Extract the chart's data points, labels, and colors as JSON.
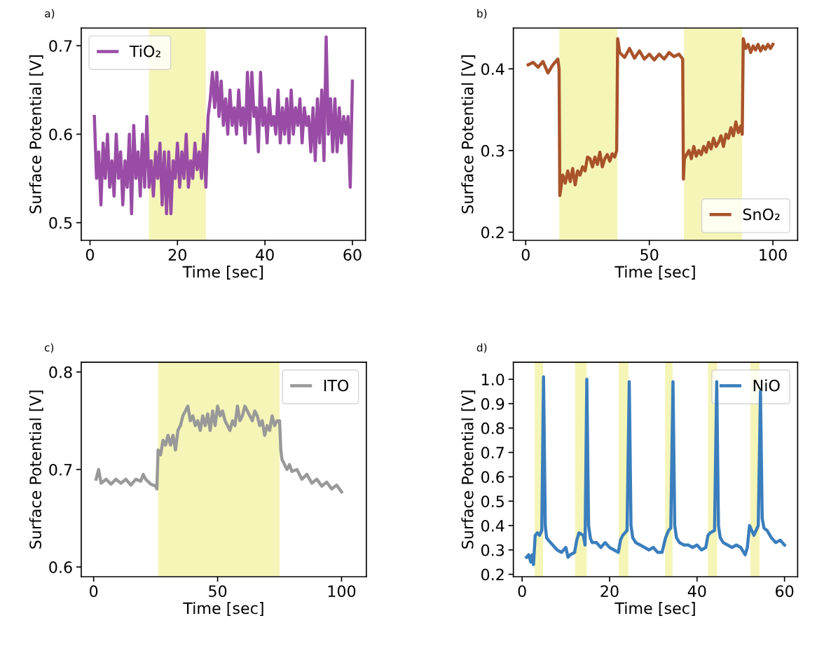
{
  "chart_data": [
    {
      "type": "line",
      "title": "a)",
      "xlabel": "Time [sec]",
      "ylabel": "Surface Potential [V]",
      "legend": "top left",
      "xlim": [
        -2,
        63
      ],
      "ylim": [
        0.48,
        0.72
      ],
      "xticks": [
        0,
        20,
        40,
        60
      ],
      "yticks": [
        0.5,
        0.6,
        0.7
      ],
      "bands": [
        {
          "axis": "x",
          "from": 13.5,
          "to": 26.5,
          "color": "#f5f5b8"
        }
      ],
      "x": [
        1,
        1.5,
        2,
        2.5,
        3,
        3.5,
        4,
        4.5,
        5,
        5.5,
        6,
        6.5,
        7,
        7.5,
        8,
        8.5,
        9,
        9.5,
        10,
        10.5,
        11,
        11.5,
        12,
        12.5,
        13,
        13.5,
        14,
        14.5,
        15,
        15.5,
        16,
        16.5,
        17,
        17.5,
        18,
        18.5,
        19,
        19.5,
        20,
        20.5,
        21,
        21.5,
        22,
        22.5,
        23,
        23.5,
        24,
        24.5,
        25,
        25.5,
        26,
        26.5,
        27,
        27.5,
        28,
        28.5,
        29,
        29.5,
        30,
        30.5,
        31,
        31.5,
        32,
        32.5,
        33,
        33.5,
        34,
        34.5,
        35,
        35.5,
        36,
        36.5,
        37,
        37.5,
        38,
        38.5,
        39,
        39.5,
        40,
        40.5,
        41,
        41.5,
        42,
        42.5,
        43,
        43.5,
        44,
        44.5,
        45,
        45.5,
        46,
        46.5,
        47,
        47.5,
        48,
        48.5,
        49,
        49.5,
        50,
        50.5,
        51,
        51.5,
        52,
        52.5,
        53,
        53.5,
        54,
        54.5,
        55,
        55.5,
        56,
        56.5,
        57,
        57.5,
        58,
        58.5,
        59,
        59.5,
        60
      ],
      "series": [
        {
          "name": "TiO₂",
          "color": "#994ca5",
          "values": [
            0.62,
            0.55,
            0.58,
            0.52,
            0.59,
            0.55,
            0.6,
            0.54,
            0.57,
            0.53,
            0.6,
            0.55,
            0.58,
            0.52,
            0.57,
            0.54,
            0.6,
            0.51,
            0.61,
            0.55,
            0.58,
            0.53,
            0.6,
            0.54,
            0.62,
            0.54,
            0.57,
            0.53,
            0.58,
            0.55,
            0.59,
            0.52,
            0.58,
            0.51,
            0.58,
            0.51,
            0.57,
            0.55,
            0.59,
            0.54,
            0.58,
            0.55,
            0.6,
            0.54,
            0.57,
            0.55,
            0.59,
            0.56,
            0.58,
            0.55,
            0.6,
            0.54,
            0.62,
            0.64,
            0.67,
            0.63,
            0.67,
            0.62,
            0.66,
            0.61,
            0.64,
            0.6,
            0.65,
            0.61,
            0.63,
            0.6,
            0.65,
            0.61,
            0.63,
            0.59,
            0.67,
            0.6,
            0.67,
            0.62,
            0.63,
            0.58,
            0.67,
            0.61,
            0.63,
            0.59,
            0.64,
            0.61,
            0.62,
            0.6,
            0.65,
            0.59,
            0.63,
            0.6,
            0.64,
            0.59,
            0.65,
            0.6,
            0.63,
            0.61,
            0.64,
            0.59,
            0.63,
            0.61,
            0.62,
            0.58,
            0.63,
            0.57,
            0.64,
            0.59,
            0.65,
            0.57,
            0.71,
            0.6,
            0.64,
            0.58,
            0.64,
            0.58,
            0.63,
            0.59,
            0.62,
            0.6,
            0.62,
            0.54,
            0.66
          ]
        }
      ]
    },
    {
      "type": "line",
      "title": "b)",
      "xlabel": "Time [sec]",
      "ylabel": "Surface Potential [V]",
      "legend": "bottom right",
      "xlim": [
        -5,
        110
      ],
      "ylim": [
        0.19,
        0.45
      ],
      "xticks": [
        0,
        50,
        100
      ],
      "yticks": [
        0.2,
        0.3,
        0.4
      ],
      "bands": [
        {
          "axis": "x",
          "from": 13.6,
          "to": 37.1,
          "color": "#f5f5b8"
        },
        {
          "axis": "x",
          "from": 64,
          "to": 87.5,
          "color": "#f5f5b8"
        }
      ],
      "x": [
        1,
        3,
        5,
        7,
        9,
        11,
        13,
        13.5,
        13.8,
        15,
        16,
        17,
        18,
        19,
        20,
        21,
        22,
        23,
        24,
        25,
        26,
        27,
        28,
        29,
        30,
        31,
        32,
        33,
        34,
        35,
        36,
        36.8,
        37.2,
        38,
        40,
        42,
        44,
        46,
        48,
        50,
        52,
        54,
        56,
        58,
        60,
        62,
        63.5,
        63.8,
        64.2,
        66,
        67,
        68,
        69,
        70,
        71,
        72,
        73,
        74,
        75,
        76,
        77,
        78,
        79,
        80,
        81,
        82,
        83,
        84,
        85,
        86,
        87,
        87.6,
        88,
        89,
        90,
        91,
        92,
        93,
        94,
        95,
        96,
        97,
        98,
        99,
        100
      ],
      "series": [
        {
          "name": "SnO₂",
          "color": "#a8532a",
          "values": [
            0.405,
            0.408,
            0.402,
            0.409,
            0.395,
            0.405,
            0.412,
            0.4,
            0.245,
            0.27,
            0.26,
            0.275,
            0.262,
            0.278,
            0.258,
            0.275,
            0.27,
            0.28,
            0.275,
            0.292,
            0.29,
            0.28,
            0.292,
            0.283,
            0.298,
            0.28,
            0.29,
            0.295,
            0.287,
            0.296,
            0.292,
            0.3,
            0.437,
            0.42,
            0.414,
            0.425,
            0.413,
            0.422,
            0.412,
            0.418,
            0.411,
            0.418,
            0.412,
            0.42,
            0.415,
            0.418,
            0.412,
            0.265,
            0.29,
            0.3,
            0.29,
            0.305,
            0.293,
            0.3,
            0.295,
            0.305,
            0.298,
            0.31,
            0.302,
            0.315,
            0.305,
            0.31,
            0.318,
            0.305,
            0.32,
            0.315,
            0.328,
            0.318,
            0.335,
            0.322,
            0.33,
            0.32,
            0.437,
            0.425,
            0.43,
            0.42,
            0.428,
            0.423,
            0.43,
            0.422,
            0.428,
            0.424,
            0.43,
            0.425,
            0.43
          ]
        }
      ]
    },
    {
      "type": "line",
      "title": "c)",
      "xlabel": "Time [sec]",
      "ylabel": "Surface Potential [V]",
      "legend": "top right",
      "xlim": [
        -5,
        110
      ],
      "ylim": [
        0.59,
        0.81
      ],
      "xticks": [
        0,
        50,
        100
      ],
      "yticks": [
        0.6,
        0.7,
        0.8
      ],
      "bands": [
        {
          "axis": "x",
          "from": 26,
          "to": 75,
          "color": "#f5f5b8"
        }
      ],
      "x": [
        1,
        2,
        3,
        5,
        7,
        9,
        11,
        13,
        15,
        17,
        19,
        20,
        21,
        23,
        25,
        25.5,
        26,
        27,
        28,
        29,
        30,
        31,
        32,
        33,
        34,
        35,
        36,
        37,
        38,
        39,
        40,
        41,
        42,
        43,
        44,
        45,
        46,
        47,
        48,
        49,
        50,
        51,
        52,
        53,
        54,
        55,
        56,
        57,
        58,
        59,
        60,
        61,
        62,
        63,
        64,
        65,
        66,
        67,
        68,
        69,
        70,
        71,
        72,
        73,
        74,
        75,
        75.5,
        76,
        77,
        78,
        79,
        80,
        82,
        84,
        86,
        88,
        90,
        92,
        94,
        96,
        98,
        100
      ],
      "series": [
        {
          "name": "ITO",
          "color": "#999999",
          "values": [
            0.69,
            0.7,
            0.686,
            0.69,
            0.685,
            0.69,
            0.686,
            0.69,
            0.684,
            0.69,
            0.688,
            0.695,
            0.69,
            0.685,
            0.683,
            0.68,
            0.72,
            0.715,
            0.73,
            0.725,
            0.735,
            0.725,
            0.735,
            0.72,
            0.74,
            0.745,
            0.755,
            0.76,
            0.765,
            0.75,
            0.755,
            0.745,
            0.75,
            0.74,
            0.755,
            0.745,
            0.757,
            0.74,
            0.76,
            0.745,
            0.765,
            0.755,
            0.76,
            0.75,
            0.745,
            0.74,
            0.75,
            0.745,
            0.765,
            0.75,
            0.755,
            0.765,
            0.76,
            0.755,
            0.75,
            0.76,
            0.755,
            0.745,
            0.75,
            0.735,
            0.745,
            0.74,
            0.755,
            0.745,
            0.75,
            0.75,
            0.72,
            0.71,
            0.705,
            0.7,
            0.705,
            0.698,
            0.7,
            0.69,
            0.695,
            0.686,
            0.69,
            0.683,
            0.687,
            0.68,
            0.684,
            0.677
          ]
        }
      ]
    },
    {
      "type": "line",
      "title": "d)",
      "xlabel": "Time [sec]",
      "ylabel": "Surface Potential [V]",
      "legend": "top right",
      "xlim": [
        -2,
        63
      ],
      "ylim": [
        0.19,
        1.07
      ],
      "xticks": [
        0,
        20,
        40,
        60
      ],
      "yticks": [
        0.2,
        0.3,
        0.4,
        0.5,
        0.6,
        0.7,
        0.8,
        0.9,
        {
          "value": 1,
          "label": "1.0"
        }
      ],
      "bands": [
        {
          "axis": "x",
          "from": 2.9,
          "to": 4.8,
          "color": "#f5f5b8"
        },
        {
          "axis": "x",
          "from": 12.1,
          "to": 14.8,
          "color": "#f5f5b8"
        },
        {
          "axis": "x",
          "from": 22.1,
          "to": 24.3,
          "color": "#f5f5b8"
        },
        {
          "axis": "x",
          "from": 32.7,
          "to": 34.4,
          "color": "#f5f5b8"
        },
        {
          "axis": "x",
          "from": 42.5,
          "to": 44.6,
          "color": "#f5f5b8"
        },
        {
          "axis": "x",
          "from": 52.2,
          "to": 54.3,
          "color": "#f5f5b8"
        }
      ],
      "x": [
        1,
        1.5,
        2,
        2.3,
        2.6,
        3,
        3.5,
        4,
        4.5,
        4.9,
        5.3,
        5.6,
        6,
        7,
        8,
        9,
        10,
        10.5,
        11,
        12,
        12.5,
        13,
        14,
        14.4,
        14.8,
        15.2,
        15.6,
        16,
        17,
        18,
        19,
        20,
        21,
        22,
        22.5,
        23,
        24,
        24.5,
        24.9,
        25.3,
        26,
        27,
        28,
        29,
        30,
        31,
        32,
        32.8,
        33.5,
        34,
        34.5,
        34.9,
        35.3,
        36,
        37,
        38,
        39,
        40,
        41,
        42,
        42.5,
        43,
        44,
        44.5,
        44.9,
        45.3,
        46,
        47,
        48,
        49,
        50,
        51,
        51.5,
        52,
        53,
        54,
        54.5,
        54.9,
        55.3,
        56,
        57,
        58,
        59,
        60
      ],
      "series": [
        {
          "name": "NiO",
          "color": "#3a7ebd",
          "values": [
            0.27,
            0.28,
            0.25,
            0.28,
            0.24,
            0.36,
            0.37,
            0.36,
            0.38,
            1.01,
            0.4,
            0.35,
            0.34,
            0.32,
            0.3,
            0.29,
            0.31,
            0.27,
            0.28,
            0.29,
            0.34,
            0.37,
            0.36,
            0.32,
            1.0,
            0.4,
            0.35,
            0.33,
            0.33,
            0.31,
            0.33,
            0.31,
            0.3,
            0.29,
            0.34,
            0.36,
            0.38,
            0.99,
            0.4,
            0.35,
            0.33,
            0.32,
            0.31,
            0.3,
            0.31,
            0.29,
            0.29,
            0.35,
            0.38,
            0.39,
            0.99,
            0.4,
            0.35,
            0.33,
            0.32,
            0.32,
            0.31,
            0.32,
            0.3,
            0.31,
            0.36,
            0.37,
            0.38,
            0.99,
            0.4,
            0.35,
            0.33,
            0.32,
            0.31,
            0.32,
            0.31,
            0.28,
            0.31,
            0.4,
            0.36,
            0.4,
            0.95,
            0.43,
            0.39,
            0.38,
            0.35,
            0.33,
            0.34,
            0.32
          ]
        }
      ]
    }
  ]
}
